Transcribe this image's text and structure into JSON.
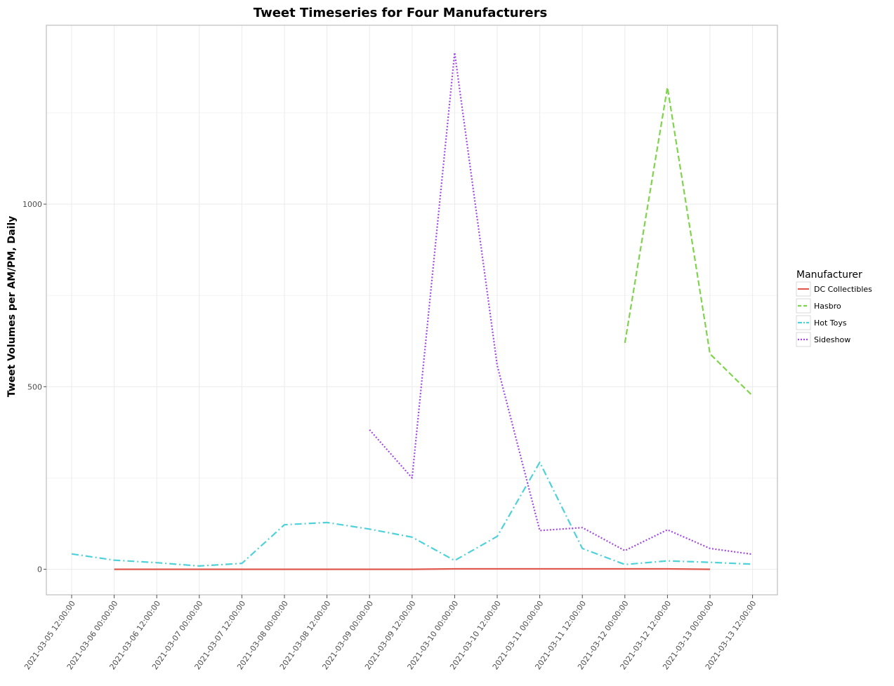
{
  "chart_data": {
    "type": "line",
    "title": "Tweet Timeseries for Four Manufacturers",
    "xlabel": "",
    "ylabel": "Tweet Volumes per AM/PM, Daily",
    "x": [
      "2021-03-05 12:00:00",
      "2021-03-06 00:00:00",
      "2021-03-06 12:00:00",
      "2021-03-07 00:00:00",
      "2021-03-07 12:00:00",
      "2021-03-08 00:00:00",
      "2021-03-08 12:00:00",
      "2021-03-09 00:00:00",
      "2021-03-09 12:00:00",
      "2021-03-10 00:00:00",
      "2021-03-10 12:00:00",
      "2021-03-11 00:00:00",
      "2021-03-11 12:00:00",
      "2021-03-12 00:00:00",
      "2021-03-12 12:00:00",
      "2021-03-13 00:00:00",
      "2021-03-13 12:00:00"
    ],
    "y_ticks": [
      0,
      500,
      1000
    ],
    "ylim": [
      -70,
      1490
    ],
    "grid": true,
    "legend": {
      "title": "Manufacturer",
      "position": "right"
    },
    "series": [
      {
        "name": "DC Collectibles",
        "color": "#e05a4f",
        "dash": "solid",
        "values": [
          null,
          0,
          0,
          0,
          0,
          0,
          0,
          0,
          0,
          1,
          1,
          1,
          1,
          1,
          1,
          0,
          null
        ]
      },
      {
        "name": "Hasbro",
        "color": "#7ed44a",
        "dash": "dashed",
        "values": [
          null,
          null,
          null,
          null,
          null,
          null,
          null,
          null,
          null,
          null,
          null,
          null,
          null,
          620,
          1320,
          590,
          475
        ]
      },
      {
        "name": "Hot Toys",
        "color": "#4fd1d9",
        "dash": "dashdot",
        "values": [
          42,
          25,
          18,
          9,
          16,
          122,
          128,
          110,
          88,
          24,
          90,
          293,
          57,
          13,
          23,
          19,
          14
        ]
      },
      {
        "name": "Sideshow",
        "color": "#a347e6",
        "dash": "dotted",
        "values": [
          null,
          null,
          null,
          null,
          null,
          null,
          null,
          382,
          250,
          1415,
          558,
          106,
          114,
          51,
          108,
          57,
          41
        ]
      }
    ]
  }
}
